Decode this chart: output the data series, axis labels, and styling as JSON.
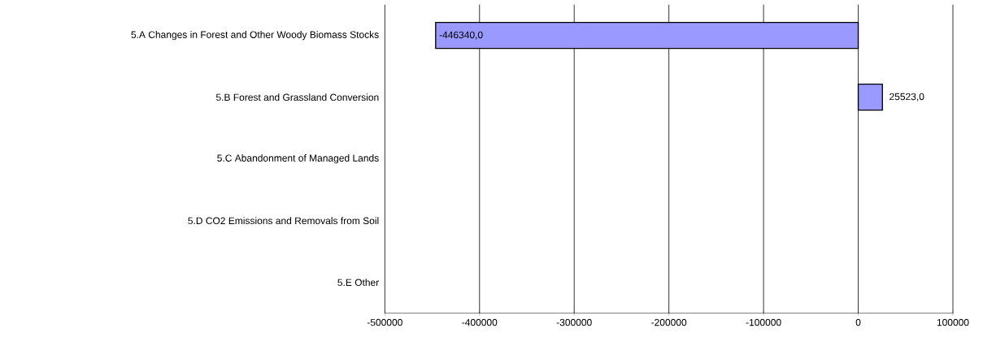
{
  "chart_data": {
    "type": "bar",
    "orientation": "horizontal",
    "categories": [
      "5.A Changes in Forest and Other Woody Biomass Stocks",
      "5.B Forest and Grassland Conversion",
      "5.C Abandonment of Managed Lands",
      "5.D CO2 Emissions and Removals from Soil",
      "5.E Other"
    ],
    "values": [
      -446340,
      25523,
      null,
      null,
      null
    ],
    "value_labels": [
      "-446340,0",
      "25523,0",
      null,
      null,
      null
    ],
    "color": "#9999ff",
    "xlim": [
      -500000,
      100000
    ],
    "xticks": [
      -500000,
      -400000,
      -300000,
      -200000,
      -100000,
      0,
      100000
    ],
    "grid": "x"
  }
}
